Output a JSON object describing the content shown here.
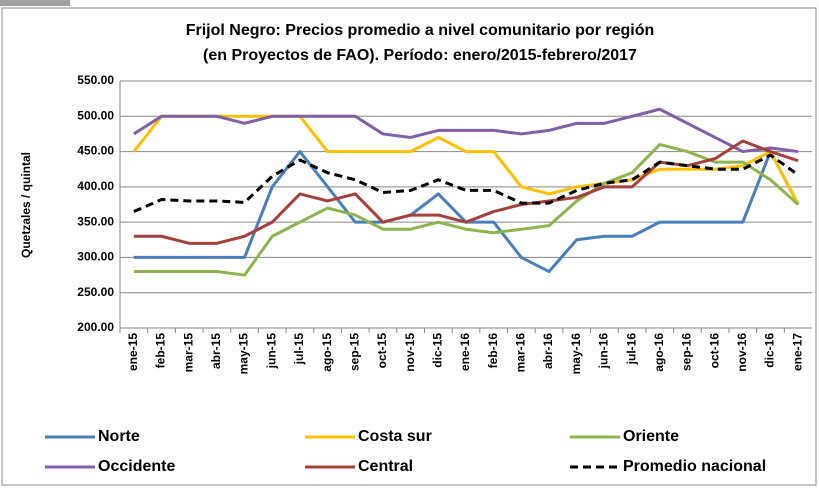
{
  "chart_data": {
    "type": "line",
    "title": [
      "Frijol Negro: Precios promedio a nivel comunitario por región",
      "(en Proyectos de FAO). Período:  enero/2015-febrero/2017"
    ],
    "y_label": "Quetzales / quintal",
    "categories": [
      "ene-15",
      "feb-15",
      "mar-15",
      "abr-15",
      "may-15",
      "jun-15",
      "jul-15",
      "ago-15",
      "sep-15",
      "oct-15",
      "nov-15",
      "dic-15",
      "ene-16",
      "feb-16",
      "mar-16",
      "abr-16",
      "may-16",
      "jun-16",
      "jul-16",
      "ago-16",
      "sep-16",
      "oct-16",
      "nov-16",
      "dic-16",
      "ene-17"
    ],
    "ylim": [
      200,
      550
    ],
    "yticks": [
      {
        "value": 200,
        "label": "200.00"
      },
      {
        "value": 250,
        "label": "250.00"
      },
      {
        "value": 300,
        "label": "300.00"
      },
      {
        "value": 350,
        "label": "350.00"
      },
      {
        "value": 400,
        "label": "400.00"
      },
      {
        "value": 450,
        "label": "450.00"
      },
      {
        "value": 500,
        "label": "500.00"
      },
      {
        "value": 550,
        "label": "550.00"
      }
    ],
    "grid": true,
    "legend": "bottom",
    "series": [
      {
        "name": "Norte",
        "color": "#4a7ebb",
        "values": [
          300,
          300,
          300,
          300,
          300,
          400,
          450,
          400,
          350,
          350,
          360,
          390,
          350,
          350,
          300,
          280,
          325,
          330,
          330,
          350,
          350,
          350,
          350,
          450,
          375
        ]
      },
      {
        "name": "Costa sur",
        "color": "#ffc000",
        "values": [
          450,
          500,
          500,
          500,
          500,
          500,
          500,
          450,
          450,
          450,
          450,
          470,
          450,
          450,
          400,
          390,
          400,
          405,
          410,
          425,
          425,
          425,
          430,
          450,
          375
        ]
      },
      {
        "name": "Oriente",
        "color": "#8eb44e",
        "values": [
          280,
          280,
          280,
          280,
          275,
          330,
          350,
          370,
          360,
          340,
          340,
          350,
          340,
          335,
          340,
          345,
          380,
          405,
          420,
          460,
          450,
          435,
          435,
          410,
          375
        ]
      },
      {
        "name": "Occidente",
        "color": "#7f5fa5",
        "values": [
          475,
          500,
          500,
          500,
          490,
          500,
          500,
          500,
          500,
          475,
          470,
          480,
          480,
          480,
          475,
          480,
          490,
          490,
          500,
          510,
          490,
          470,
          450,
          455,
          450
        ]
      },
      {
        "name": "Central",
        "color": "#a5403d",
        "values": [
          330,
          330,
          320,
          320,
          330,
          350,
          390,
          380,
          390,
          350,
          360,
          360,
          350,
          365,
          375,
          380,
          385,
          400,
          400,
          435,
          430,
          440,
          465,
          450,
          437
        ]
      },
      {
        "name": "Promedio nacional",
        "color": "#000000",
        "dashed": true,
        "values": [
          365,
          382,
          380,
          380,
          378,
          415,
          438,
          420,
          410,
          392,
          395,
          410,
          395,
          395,
          377,
          377,
          395,
          405,
          410,
          435,
          430,
          425,
          425,
          445,
          417
        ]
      }
    ]
  }
}
